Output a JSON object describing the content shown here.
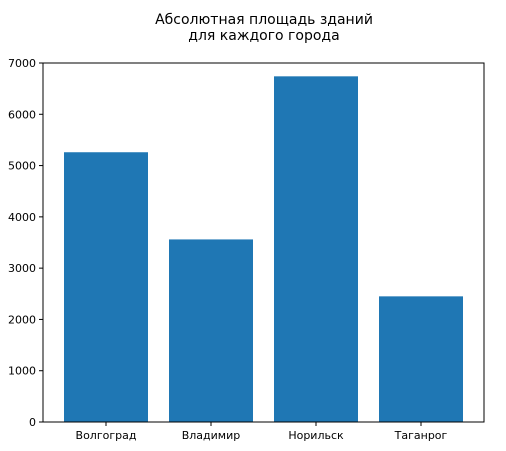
{
  "chart_data": {
    "type": "bar",
    "title": [
      "Абсолютная площадь зданий",
      "для каждого города"
    ],
    "xlabel": "",
    "ylabel": "",
    "categories": [
      "Волгоград",
      "Владимир",
      "Норильск",
      "Таганрог"
    ],
    "values": [
      5260,
      3560,
      6740,
      2450
    ],
    "ylim": [
      0,
      7000
    ],
    "yticks": [
      "0",
      "1000",
      "2000",
      "3000",
      "4000",
      "5000",
      "6000",
      "7000"
    ],
    "grid": false,
    "legend": "none",
    "colors": {
      "bar": "#1f77b4",
      "axes": "#000000",
      "background": "#ffffff"
    }
  }
}
